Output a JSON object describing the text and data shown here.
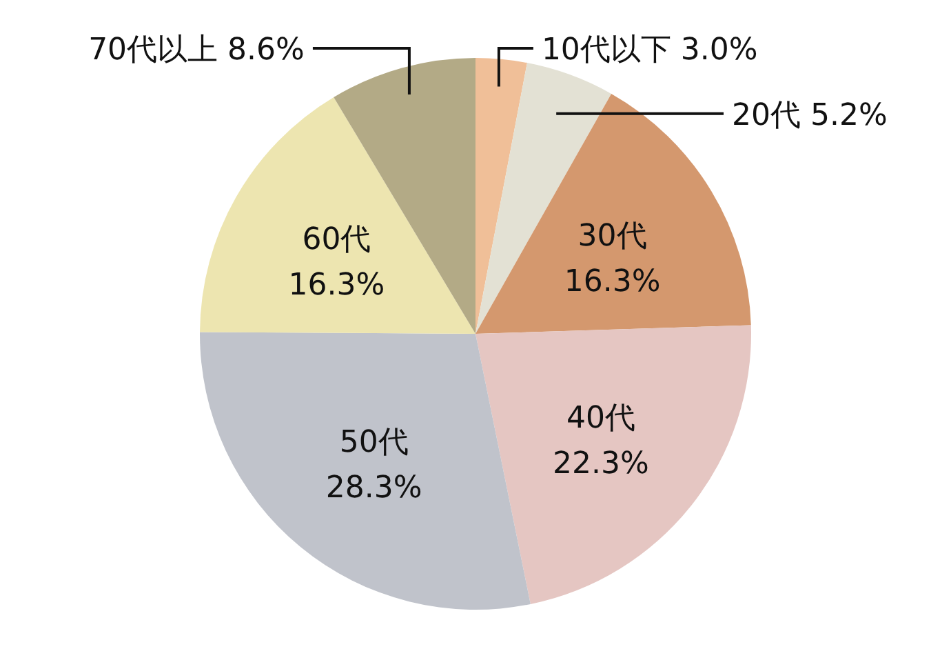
{
  "chart_data": {
    "type": "pie",
    "categories": [
      "10代以下",
      "20代",
      "30代",
      "40代",
      "50代",
      "60代",
      "70代以上"
    ],
    "values": [
      3.0,
      5.2,
      16.3,
      22.3,
      28.3,
      16.3,
      8.6
    ],
    "value_labels": [
      "3.0%",
      "5.2%",
      "16.3%",
      "22.3%",
      "28.3%",
      "16.3%",
      "8.6%"
    ],
    "colors": [
      "#f0bf98",
      "#e3e1d4",
      "#d4986e",
      "#e5c6c2",
      "#c0c3cb",
      "#ede5b0",
      "#b3aa86"
    ]
  }
}
